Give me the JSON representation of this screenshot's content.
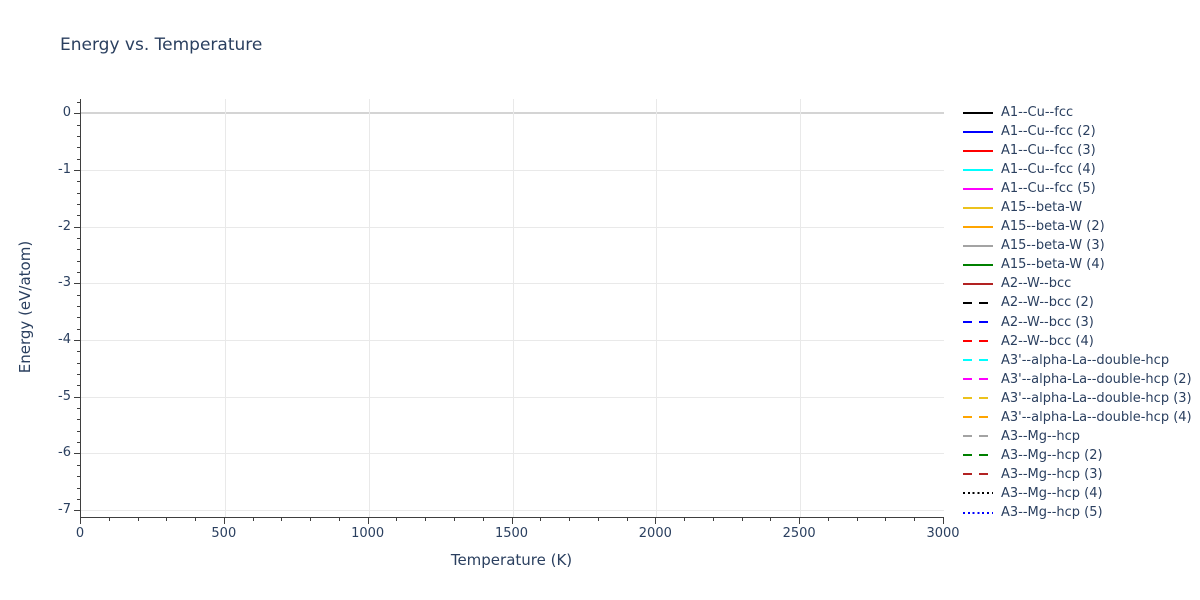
{
  "title": "Energy vs. Temperature",
  "axes": {
    "x": {
      "title": "Temperature (K)",
      "range": [
        0,
        3000
      ],
      "major_ticks": [
        0,
        500,
        1000,
        1500,
        2000,
        2500,
        3000
      ],
      "minor_tick_step": 100,
      "gridlines_at": [
        500,
        1000,
        1500,
        2000,
        2500
      ]
    },
    "y": {
      "title": "Energy (eV/atom)",
      "range_top": 0.25,
      "range_bottom": -7.12,
      "major_ticks": [
        0,
        -1,
        -2,
        -3,
        -4,
        -5,
        -6,
        -7
      ],
      "minor_tick_step": 0.2,
      "zeroline": 0
    }
  },
  "colors": {
    "text": "#2a3f5f",
    "axis_line": "#3f3f3f",
    "gridline": "#e9e9e9",
    "zeroline": "#d4d4d4",
    "background": "#ffffff"
  },
  "chart_data": {
    "type": "line",
    "title": "Energy vs. Temperature",
    "xlabel": "Temperature (K)",
    "ylabel": "Energy (eV/atom)",
    "xlim": [
      0,
      3000
    ],
    "ylim": [
      -7.12,
      0.25
    ],
    "x_ticks": [
      0,
      500,
      1000,
      1500,
      2000,
      2500,
      3000
    ],
    "y_ticks": [
      0,
      -1,
      -2,
      -3,
      -4,
      -5,
      -6,
      -7
    ],
    "grid": true,
    "legend_position": "right",
    "note": "Plot area is empty: only gridlines are visible; all 22 series appear in the legend but render no visible data points.",
    "series": [
      {
        "name": "A1--Cu--fcc",
        "color": "#000000",
        "dash": "solid",
        "values": []
      },
      {
        "name": "A1--Cu--fcc (2)",
        "color": "#0000ff",
        "dash": "solid",
        "values": []
      },
      {
        "name": "A1--Cu--fcc (3)",
        "color": "#ff0000",
        "dash": "solid",
        "values": []
      },
      {
        "name": "A1--Cu--fcc (4)",
        "color": "#00ffff",
        "dash": "solid",
        "values": []
      },
      {
        "name": "A1--Cu--fcc (5)",
        "color": "#ff00ff",
        "dash": "solid",
        "values": []
      },
      {
        "name": "A15--beta-W",
        "color": "#ecc21c",
        "dash": "solid",
        "values": []
      },
      {
        "name": "A15--beta-W (2)",
        "color": "#ffa500",
        "dash": "solid",
        "values": []
      },
      {
        "name": "A15--beta-W (3)",
        "color": "#a3a3a3",
        "dash": "solid",
        "values": []
      },
      {
        "name": "A15--beta-W (4)",
        "color": "#008000",
        "dash": "solid",
        "values": []
      },
      {
        "name": "A2--W--bcc",
        "color": "#b22222",
        "dash": "solid",
        "values": []
      },
      {
        "name": "A2--W--bcc (2)",
        "color": "#000000",
        "dash": "dash",
        "values": []
      },
      {
        "name": "A2--W--bcc (3)",
        "color": "#0000ff",
        "dash": "dash",
        "values": []
      },
      {
        "name": "A2--W--bcc (4)",
        "color": "#ff0000",
        "dash": "dash",
        "values": []
      },
      {
        "name": "A3'--alpha-La--double-hcp",
        "color": "#00ffff",
        "dash": "dash",
        "values": []
      },
      {
        "name": "A3'--alpha-La--double-hcp (2)",
        "color": "#ff00ff",
        "dash": "dash",
        "values": []
      },
      {
        "name": "A3'--alpha-La--double-hcp (3)",
        "color": "#ecc21c",
        "dash": "dash",
        "values": []
      },
      {
        "name": "A3'--alpha-La--double-hcp (4)",
        "color": "#ffa500",
        "dash": "dash",
        "values": []
      },
      {
        "name": "A3--Mg--hcp",
        "color": "#a3a3a3",
        "dash": "dash",
        "values": []
      },
      {
        "name": "A3--Mg--hcp (2)",
        "color": "#008000",
        "dash": "dash",
        "values": []
      },
      {
        "name": "A3--Mg--hcp (3)",
        "color": "#b22222",
        "dash": "dash",
        "values": []
      },
      {
        "name": "A3--Mg--hcp (4)",
        "color": "#000000",
        "dash": "dot",
        "values": []
      },
      {
        "name": "A3--Mg--hcp (5)",
        "color": "#0000ff",
        "dash": "dot",
        "values": []
      }
    ]
  }
}
